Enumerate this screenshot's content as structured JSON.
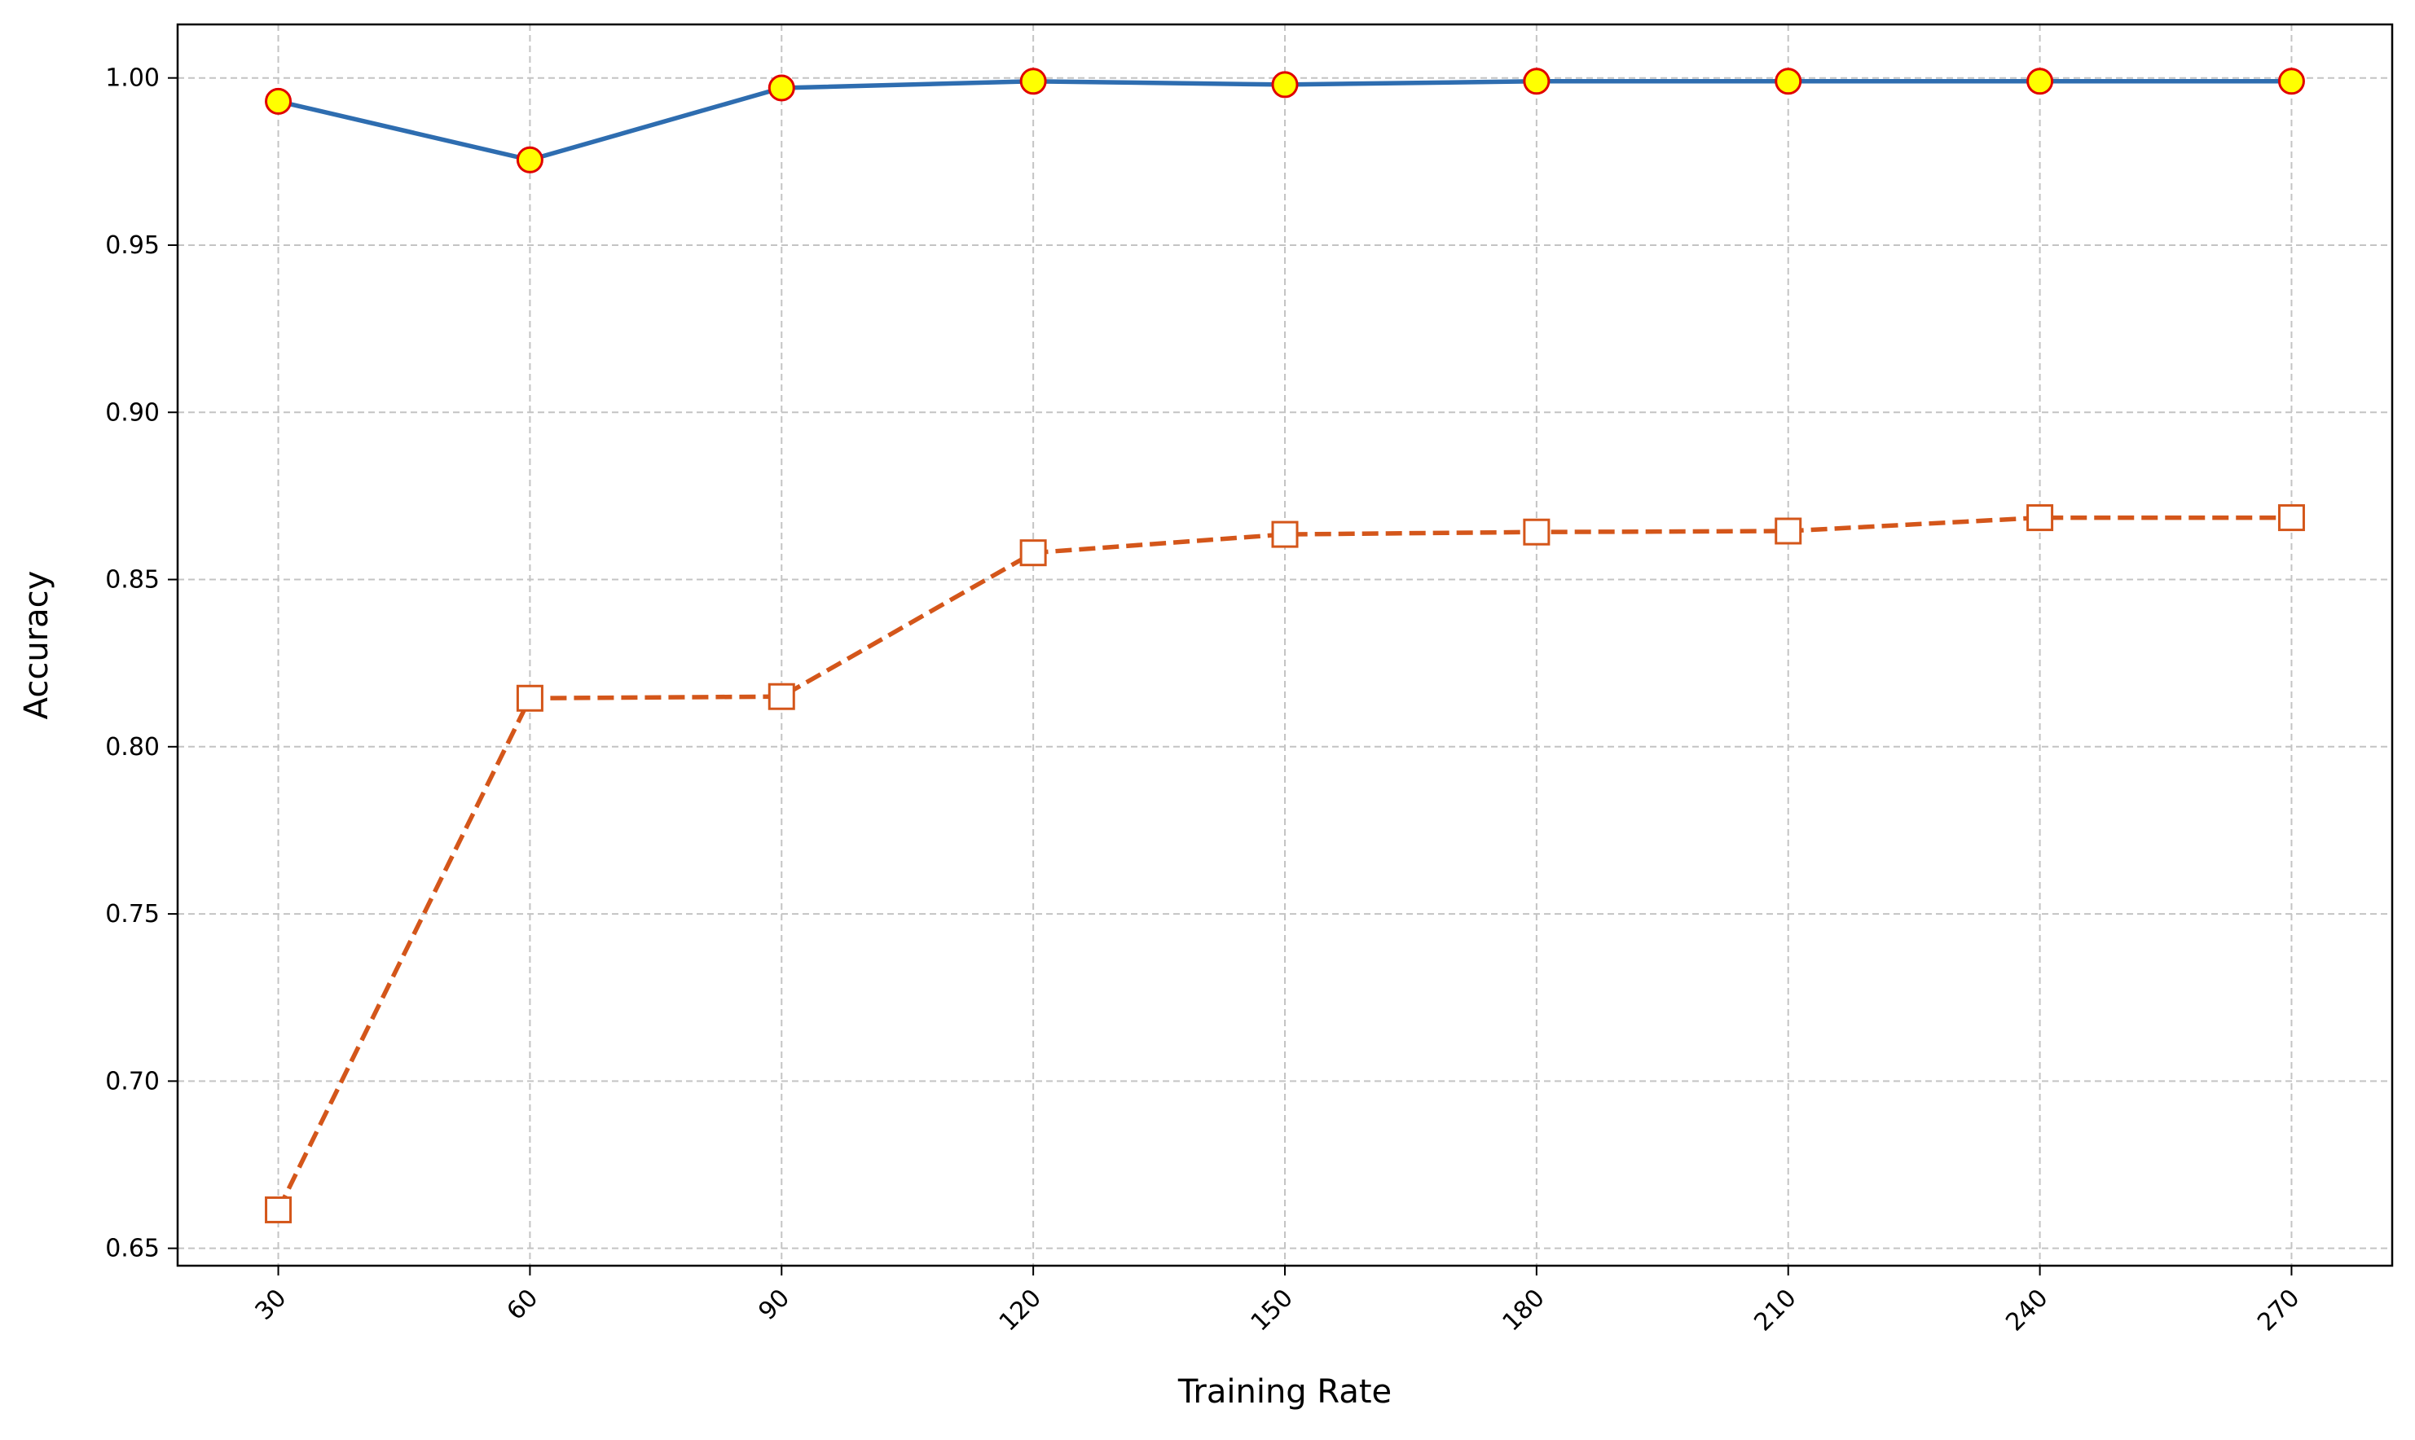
{
  "chart_data": {
    "type": "line",
    "title": "",
    "xlabel": "Training Rate",
    "ylabel": "Accuracy",
    "x": [
      30,
      60,
      90,
      120,
      150,
      180,
      210,
      240,
      270
    ],
    "x_tick_labels": [
      "30",
      "60",
      "90",
      "120",
      "150",
      "180",
      "210",
      "240",
      "270"
    ],
    "y_tick_labels": [
      "0.65",
      "0.70",
      "0.75",
      "0.80",
      "0.85",
      "0.90",
      "0.95",
      "1.00"
    ],
    "y_ticks": [
      0.65,
      0.7,
      0.75,
      0.8,
      0.85,
      0.9,
      0.95,
      1.0
    ],
    "xlim": [
      18,
      282
    ],
    "ylim": [
      0.6448,
      1.016
    ],
    "grid": true,
    "legend": false,
    "series": [
      {
        "values": [
          0.993,
          0.9755,
          0.997,
          0.999,
          0.998,
          0.999,
          0.999,
          0.999,
          0.999
        ],
        "line_color": "#2e6db0",
        "line_style": "solid",
        "marker": "circle",
        "marker_fill": "#ffff00",
        "marker_edge": "#e00000"
      },
      {
        "values": [
          0.6615,
          0.8145,
          0.815,
          0.858,
          0.8635,
          0.8642,
          0.8645,
          0.8685,
          0.8685
        ],
        "line_color": "#d4561a",
        "line_style": "dashed",
        "marker": "square",
        "marker_fill": "#ffffff",
        "marker_edge": "#d4561a"
      }
    ]
  }
}
